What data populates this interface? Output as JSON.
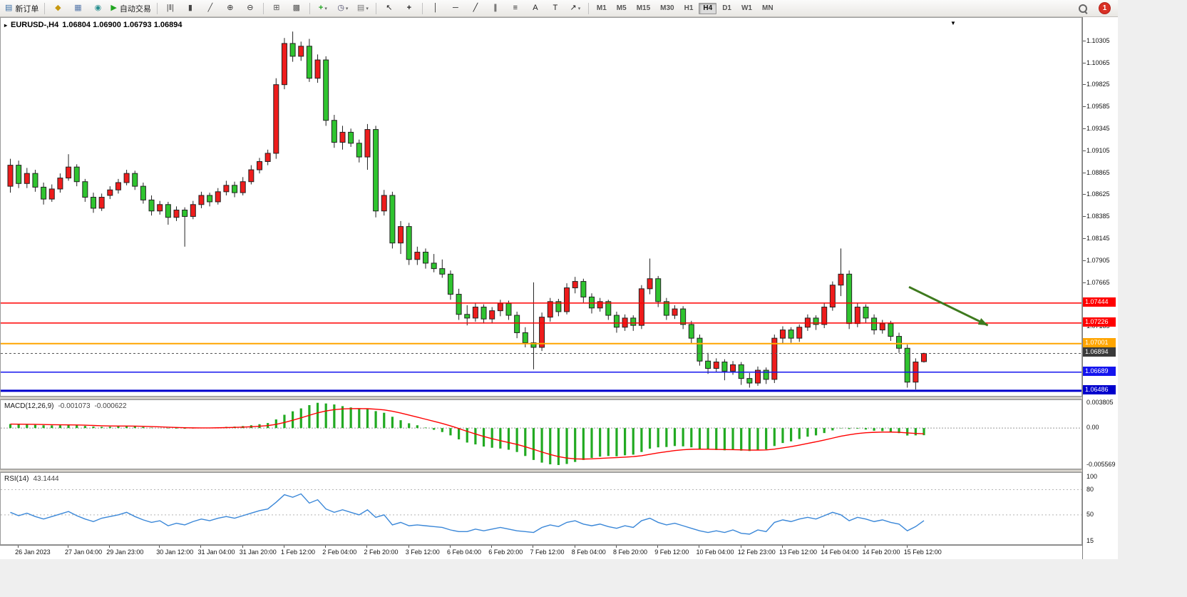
{
  "toolbar": {
    "buttons": [
      {
        "id": "new-order",
        "label": "新订单",
        "icon": "new-order",
        "sep_after": true
      },
      {
        "id": "market-watch",
        "icon": "market-watch"
      },
      {
        "id": "data-window",
        "icon": "data-window"
      },
      {
        "id": "navigator",
        "icon": "navigator"
      },
      {
        "id": "autotrade",
        "label": "自动交易",
        "icon": "autotrade",
        "sep_after": true
      },
      {
        "id": "bar-chart",
        "icon": "bar-chart"
      },
      {
        "id": "candle-chart",
        "icon": "candle-chart"
      },
      {
        "id": "line-chart",
        "icon": "line-chart"
      },
      {
        "id": "zoom-in",
        "icon": "zoom-in"
      },
      {
        "id": "zoom-out",
        "icon": "zoom-out",
        "sep_after": true
      },
      {
        "id": "tile-windows",
        "icon": "tile-windows"
      },
      {
        "id": "auto-arrange",
        "icon": "auto-arrange",
        "sep_after": true
      },
      {
        "id": "new-chart",
        "icon": "new-chart",
        "dropdown": true
      },
      {
        "id": "profiles",
        "icon": "profiles",
        "dropdown": true
      },
      {
        "id": "templates",
        "icon": "templates",
        "dropdown": true,
        "sep_after": true
      },
      {
        "id": "cursor",
        "icon": "cursor"
      },
      {
        "id": "crosshair",
        "icon": "crosshair",
        "sep_after": true
      },
      {
        "id": "vertical-line",
        "icon": "vertical-line"
      },
      {
        "id": "horizontal-line",
        "icon": "horizontal-line"
      },
      {
        "id": "trendline",
        "icon": "trendline"
      },
      {
        "id": "channel",
        "icon": "channel"
      },
      {
        "id": "fibonacci",
        "icon": "fibonacci"
      },
      {
        "id": "text",
        "icon": "text"
      },
      {
        "id": "text-label",
        "icon": "text-label"
      },
      {
        "id": "arrows",
        "icon": "arrows",
        "dropdown": true,
        "sep_after": true
      }
    ],
    "icons": {
      "new-order": "▤",
      "market-watch": "◆",
      "data-window": "▦",
      "navigator": "◉",
      "autotrade": "▶",
      "bar-chart": "|‖|",
      "candle-chart": "▮",
      "line-chart": "╱",
      "zoom-in": "⊕",
      "zoom-out": "⊖",
      "tile-windows": "⊞",
      "auto-arrange": "▩",
      "new-chart": "+",
      "profiles": "◷",
      "templates": "▤",
      "cursor": "↖",
      "crosshair": "+",
      "vertical-line": "│",
      "horizontal-line": "─",
      "trendline": "╱",
      "channel": "∥",
      "fibonacci": "≡",
      "text": "A",
      "text-label": "T",
      "arrows": "↗"
    },
    "icon_colors": {
      "new-order": "#3a6ea5",
      "market-watch": "#c79810",
      "data-window": "#5577aa",
      "navigator": "#2a9090",
      "autotrade": "#1fa51f",
      "new-chart": "#1fa51f",
      "zoom-in": "#333",
      "zoom-out": "#333",
      "bar-chart": "#444",
      "candle-chart": "#444",
      "line-chart": "#444",
      "tile-windows": "#555",
      "auto-arrange": "#555",
      "profiles": "#446",
      "templates": "#777",
      "cursor": "#222",
      "crosshair": "#222",
      "vertical-line": "#222",
      "horizontal-line": "#222",
      "trendline": "#222",
      "channel": "#222",
      "fibonacci": "#222",
      "text": "#222",
      "text-label": "#222",
      "arrows": "#222"
    },
    "timeframes": [
      "M1",
      "M5",
      "M15",
      "M30",
      "H1",
      "H4",
      "D1",
      "W1",
      "MN"
    ],
    "active_timeframe": "H4",
    "notification_count": "1"
  },
  "chart": {
    "symbol_period": "EURUSD-,H4",
    "ohlc_text": "1.06804 1.06900 1.06793 1.06894",
    "open": "1.06804",
    "high": "1.06900",
    "low": "1.06793",
    "close": "1.06894",
    "dropdown_glyph": "▼",
    "menu_glyph": "▸"
  },
  "indicators": {
    "macd": {
      "name": "MACD(12,26,9)",
      "main_value": "-0.001073",
      "signal_value": "-0.000622",
      "axis_labels": [
        {
          "t": "0.003805",
          "v": 0.003805
        },
        {
          "t": "0.00",
          "v": 0
        },
        {
          "t": "-0.005569",
          "v": -0.005569
        }
      ]
    },
    "rsi": {
      "name": "RSI(14)",
      "value": "43.1444",
      "axis_labels": [
        {
          "t": "100",
          "v": 100
        },
        {
          "t": "80",
          "v": 80
        },
        {
          "t": "50",
          "v": 50
        },
        {
          "t": "15",
          "v": 15
        }
      ],
      "level_lines": [
        80,
        50
      ]
    }
  },
  "price_axis": {
    "tick_labels": [
      "1.10305",
      "1.10065",
      "1.09825",
      "1.09585",
      "1.09345",
      "1.09105",
      "1.08865",
      "1.08625",
      "1.08385",
      "1.08145",
      "1.07905",
      "1.07665",
      "1.07425",
      "1.07185",
      "1.06945",
      "1.06705",
      "1.06465"
    ]
  },
  "levels": [
    {
      "price": 1.07444,
      "label": "1.07444",
      "color": "#ff0000",
      "width": 1.5
    },
    {
      "price": 1.07226,
      "label": "1.07226",
      "color": "#ff0000",
      "width": 1.5
    },
    {
      "price": 1.07001,
      "label": "1.07001",
      "color": "#ffa500",
      "width": 2
    },
    {
      "price": 1.06689,
      "label": "1.06689",
      "color": "#1414ee",
      "width": 1.5
    },
    {
      "price": 1.06486,
      "label": "1.06486",
      "color": "#0000cd",
      "width": 3
    }
  ],
  "current_price": {
    "price": 1.06894,
    "label": "1.06894",
    "badge_bg": "#3a3a3a",
    "line_color": "#555"
  },
  "annotation_arrow": {
    "from_index": 108.5,
    "from_price": 1.0762,
    "to_index": 118,
    "to_price": 1.072,
    "color": "#3e7a1e"
  },
  "time_axis": {
    "labels": [
      {
        "t": "26 Jan 2023",
        "i": 1
      },
      {
        "t": "27 Jan 04:00",
        "i": 7
      },
      {
        "t": "29 Jan 23:00",
        "i": 12
      },
      {
        "t": "30 Jan 12:00",
        "i": 18
      },
      {
        "t": "31 Jan 04:00",
        "i": 23
      },
      {
        "t": "31 Jan 20:00",
        "i": 28
      },
      {
        "t": "1 Feb 12:00",
        "i": 33
      },
      {
        "t": "2 Feb 04:00",
        "i": 38
      },
      {
        "t": "2 Feb 20:00",
        "i": 43
      },
      {
        "t": "3 Feb 12:00",
        "i": 48
      },
      {
        "t": "6 Feb 04:00",
        "i": 53
      },
      {
        "t": "6 Feb 20:00",
        "i": 58
      },
      {
        "t": "7 Feb 12:00",
        "i": 63
      },
      {
        "t": "8 Feb 04:00",
        "i": 68
      },
      {
        "t": "8 Feb 20:00",
        "i": 73
      },
      {
        "t": "9 Feb 12:00",
        "i": 78
      },
      {
        "t": "10 Feb 04:00",
        "i": 83
      },
      {
        "t": "12 Feb 23:00",
        "i": 88
      },
      {
        "t": "13 Feb 12:00",
        "i": 93
      },
      {
        "t": "14 Feb 04:00",
        "i": 98
      },
      {
        "t": "14 Feb 20:00",
        "i": 103
      },
      {
        "t": "15 Feb 12:00",
        "i": 108
      }
    ]
  },
  "chart_data": {
    "type": "candlestick",
    "symbol": "EURUSD",
    "timeframe": "H4",
    "price_range": [
      1.0643,
      1.1056
    ],
    "up_color": "#ee1c1c",
    "down_color": "#2fc42f",
    "candles": [
      [
        1.0872,
        1.0902,
        1.0865,
        1.0895
      ],
      [
        1.0895,
        1.09,
        1.087,
        1.0875
      ],
      [
        1.0875,
        1.0892,
        1.087,
        1.0886
      ],
      [
        1.0886,
        1.089,
        1.0866,
        1.0871
      ],
      [
        1.0871,
        1.0876,
        1.0852,
        1.0858
      ],
      [
        1.0858,
        1.0874,
        1.0855,
        1.0869
      ],
      [
        1.0869,
        1.0886,
        1.0865,
        1.0881
      ],
      [
        1.0881,
        1.0907,
        1.0878,
        1.0893
      ],
      [
        1.0893,
        1.0896,
        1.0872,
        1.0877
      ],
      [
        1.0877,
        1.088,
        1.0855,
        1.086
      ],
      [
        1.086,
        1.0865,
        1.0843,
        1.0848
      ],
      [
        1.0848,
        1.0864,
        1.0845,
        1.086
      ],
      [
        1.0862,
        1.0872,
        1.0858,
        1.0868
      ],
      [
        1.0868,
        1.088,
        1.0864,
        1.0876
      ],
      [
        1.0876,
        1.089,
        1.0873,
        1.0886
      ],
      [
        1.0886,
        1.0889,
        1.0868,
        1.0872
      ],
      [
        1.0872,
        1.0876,
        1.0853,
        1.0857
      ],
      [
        1.0857,
        1.0862,
        1.084,
        1.0845
      ],
      [
        1.0845,
        1.0856,
        1.0841,
        1.0852
      ],
      [
        1.0852,
        1.0855,
        1.083,
        1.0838
      ],
      [
        1.0838,
        1.085,
        1.0834,
        1.0846
      ],
      [
        1.0846,
        1.0849,
        1.0806,
        1.0839
      ],
      [
        1.0839,
        1.0856,
        1.0836,
        1.0852
      ],
      [
        1.0852,
        1.0866,
        1.0848,
        1.0862
      ],
      [
        1.0862,
        1.0865,
        1.085,
        1.0855
      ],
      [
        1.0855,
        1.087,
        1.0852,
        1.0866
      ],
      [
        1.0866,
        1.0878,
        1.0862,
        1.0873
      ],
      [
        1.0873,
        1.0877,
        1.086,
        1.0865
      ],
      [
        1.0865,
        1.0882,
        1.0862,
        1.0877
      ],
      [
        1.0877,
        1.0895,
        1.0874,
        1.089
      ],
      [
        1.089,
        1.0903,
        1.0886,
        1.0899
      ],
      [
        1.0899,
        1.0912,
        1.0895,
        1.0908
      ],
      [
        1.0908,
        1.099,
        1.0902,
        1.0983
      ],
      [
        1.0983,
        1.1034,
        1.0978,
        1.1028
      ],
      [
        1.1028,
        1.1041,
        1.1008,
        1.1014
      ],
      [
        1.1014,
        1.103,
        1.1009,
        1.1025
      ],
      [
        1.1025,
        1.1033,
        1.0986,
        1.099
      ],
      [
        1.099,
        1.1016,
        1.0985,
        1.101
      ],
      [
        1.101,
        1.1014,
        1.0938,
        1.0944
      ],
      [
        1.0944,
        1.095,
        1.0914,
        1.092
      ],
      [
        1.092,
        1.0938,
        1.0912,
        1.0931
      ],
      [
        1.0931,
        1.0935,
        1.0915,
        1.0919
      ],
      [
        1.0919,
        1.0923,
        1.0898,
        1.0904
      ],
      [
        1.0904,
        1.094,
        1.089,
        1.0934
      ],
      [
        1.0934,
        1.0938,
        1.0838,
        1.0845
      ],
      [
        1.0845,
        1.0868,
        1.084,
        1.0862
      ],
      [
        1.0862,
        1.0866,
        1.0804,
        1.081
      ],
      [
        1.081,
        1.0834,
        1.0798,
        1.0828
      ],
      [
        1.0828,
        1.0832,
        1.0786,
        1.0792
      ],
      [
        1.0792,
        1.0806,
        1.0786,
        1.08
      ],
      [
        1.08,
        1.0804,
        1.0782,
        1.0788
      ],
      [
        1.0788,
        1.0798,
        1.0778,
        1.0782
      ],
      [
        1.0782,
        1.0792,
        1.0772,
        1.0776
      ],
      [
        1.0776,
        1.078,
        1.0748,
        1.0754
      ],
      [
        1.0754,
        1.076,
        1.0726,
        1.0732
      ],
      [
        1.0732,
        1.0742,
        1.072,
        1.0728
      ],
      [
        1.0728,
        1.0744,
        1.0724,
        1.074
      ],
      [
        1.074,
        1.0743,
        1.0722,
        1.0727
      ],
      [
        1.0727,
        1.074,
        1.0722,
        1.0736
      ],
      [
        1.0736,
        1.0748,
        1.073,
        1.0744
      ],
      [
        1.0744,
        1.0747,
        1.0726,
        1.0731
      ],
      [
        1.0731,
        1.0735,
        1.0706,
        1.0712
      ],
      [
        1.0712,
        1.0718,
        1.0696,
        1.0701
      ],
      [
        1.0701,
        1.0767,
        1.0672,
        1.0696
      ],
      [
        1.0696,
        1.0734,
        1.0692,
        1.0729
      ],
      [
        1.0729,
        1.075,
        1.0724,
        1.0746
      ],
      [
        1.0746,
        1.0749,
        1.073,
        1.0735
      ],
      [
        1.0735,
        1.0766,
        1.0732,
        1.0761
      ],
      [
        1.0761,
        1.0773,
        1.0755,
        1.0768
      ],
      [
        1.0768,
        1.0771,
        1.0745,
        1.0751
      ],
      [
        1.0751,
        1.0755,
        1.0733,
        1.0739
      ],
      [
        1.0739,
        1.075,
        1.0735,
        1.0746
      ],
      [
        1.0746,
        1.0748,
        1.0726,
        1.0731
      ],
      [
        1.0731,
        1.0735,
        1.0712,
        1.0718
      ],
      [
        1.0718,
        1.0732,
        1.0714,
        1.0728
      ],
      [
        1.0728,
        1.0731,
        1.0714,
        1.072
      ],
      [
        1.072,
        1.0764,
        1.0716,
        1.076
      ],
      [
        1.076,
        1.0793,
        1.0754,
        1.0771
      ],
      [
        1.0771,
        1.0774,
        1.074,
        1.0746
      ],
      [
        1.0746,
        1.075,
        1.0726,
        1.0731
      ],
      [
        1.0731,
        1.0742,
        1.0727,
        1.0738
      ],
      [
        1.0738,
        1.0741,
        1.0716,
        1.0721
      ],
      [
        1.0721,
        1.0725,
        1.07,
        1.0706
      ],
      [
        1.0706,
        1.071,
        1.0676,
        1.0681
      ],
      [
        1.0681,
        1.069,
        1.0667,
        1.0673
      ],
      [
        1.0673,
        1.0684,
        1.0669,
        1.068
      ],
      [
        1.068,
        1.0683,
        1.066,
        1.067
      ],
      [
        1.067,
        1.0681,
        1.0666,
        1.0677
      ],
      [
        1.0677,
        1.068,
        1.0655,
        1.0662
      ],
      [
        1.0662,
        1.0668,
        1.0652,
        1.0657
      ],
      [
        1.0657,
        1.0675,
        1.0654,
        1.0671
      ],
      [
        1.0671,
        1.0674,
        1.0656,
        1.0661
      ],
      [
        1.0661,
        1.071,
        1.0657,
        1.0706
      ],
      [
        1.0706,
        1.0719,
        1.07,
        1.0715
      ],
      [
        1.0715,
        1.0718,
        1.0701,
        1.0706
      ],
      [
        1.0706,
        1.0721,
        1.0702,
        1.0718
      ],
      [
        1.0718,
        1.0732,
        1.0714,
        1.0728
      ],
      [
        1.0728,
        1.0731,
        1.0715,
        1.0721
      ],
      [
        1.0721,
        1.0744,
        1.0717,
        1.074
      ],
      [
        1.074,
        1.0768,
        1.0736,
        1.0764
      ],
      [
        1.0764,
        1.0804,
        1.0752,
        1.0776
      ],
      [
        1.0776,
        1.078,
        1.0716,
        1.0722
      ],
      [
        1.0722,
        1.0744,
        1.0718,
        1.074
      ],
      [
        1.074,
        1.0743,
        1.0723,
        1.0728
      ],
      [
        1.0728,
        1.0732,
        1.071,
        1.0715
      ],
      [
        1.0715,
        1.0726,
        1.0711,
        1.0722
      ],
      [
        1.0722,
        1.0725,
        1.0703,
        1.0708
      ],
      [
        1.0708,
        1.0712,
        1.069,
        1.0695
      ],
      [
        1.0695,
        1.0699,
        1.0652,
        1.0658
      ],
      [
        1.0658,
        1.0684,
        1.065,
        1.068
      ],
      [
        1.06804,
        1.069,
        1.06793,
        1.06894
      ]
    ],
    "macd_values": [
      0.0006,
      0.00055,
      0.00052,
      0.00048,
      0.00042,
      0.0004,
      0.00042,
      0.00045,
      0.0004,
      0.00032,
      0.00022,
      0.00018,
      0.0002,
      0.00024,
      0.00028,
      0.00024,
      0.00016,
      6e-05,
      2e-05,
      -6e-05,
      -8e-05,
      -0.0001,
      -6e-05,
      0.0,
      4e-05,
      0.0001,
      0.00018,
      0.00022,
      0.0003,
      0.00042,
      0.00058,
      0.00076,
      0.0013,
      0.002,
      0.00252,
      0.00296,
      0.00345,
      0.0038,
      0.0037,
      0.00355,
      0.0033,
      0.0031,
      0.00295,
      0.00285,
      0.00255,
      0.0023,
      0.0017,
      0.00118,
      0.00072,
      0.00042,
      8e-05,
      -0.00026,
      -0.0006,
      -0.0011,
      -0.0017,
      -0.00218,
      -0.00246,
      -0.00278,
      -0.00296,
      -0.00308,
      -0.00326,
      -0.0036,
      -0.0042,
      -0.0048,
      -0.0052,
      -0.00545,
      -0.00556,
      -0.0054,
      -0.0051,
      -0.0048,
      -0.0045,
      -0.0043,
      -0.0042,
      -0.00425,
      -0.0041,
      -0.004,
      -0.0036,
      -0.0031,
      -0.0029,
      -0.00285,
      -0.0027,
      -0.00275,
      -0.0029,
      -0.0031,
      -0.00325,
      -0.0033,
      -0.00335,
      -0.0033,
      -0.0034,
      -0.00345,
      -0.0033,
      -0.0032,
      -0.0027,
      -0.00225,
      -0.002,
      -0.00165,
      -0.0013,
      -0.0011,
      -0.00075,
      -0.00035,
      -5e-05,
      -0.00014,
      -0.0001,
      -0.00022,
      -0.0004,
      -0.00046,
      -0.00058,
      -0.00076,
      -0.00112,
      -0.0011,
      -0.001073
    ],
    "rsi_values": [
      53,
      49,
      52,
      48,
      45,
      48,
      51,
      54,
      49,
      45,
      42,
      46,
      48,
      50,
      53,
      48,
      44,
      41,
      43,
      37,
      40,
      38,
      42,
      45,
      43,
      46,
      48,
      46,
      49,
      52,
      55,
      57,
      65,
      74,
      71,
      75,
      64,
      68,
      57,
      53,
      56,
      53,
      50,
      56,
      47,
      50,
      38,
      41,
      37,
      38,
      37,
      36,
      35,
      32,
      30,
      30,
      33,
      31,
      33,
      35,
      33,
      31,
      30,
      29,
      35,
      38,
      36,
      41,
      43,
      39,
      37,
      39,
      36,
      34,
      37,
      35,
      43,
      46,
      41,
      38,
      40,
      37,
      34,
      31,
      29,
      31,
      29,
      32,
      28,
      27,
      32,
      30,
      41,
      44,
      42,
      45,
      47,
      45,
      49,
      53,
      50,
      43,
      47,
      45,
      42,
      44,
      41,
      39,
      31,
      36,
      43.1444
    ]
  },
  "colors": {
    "macd_hist": "#22aa22",
    "macd_signal": "#ff0000",
    "rsi_line": "#3a87d8",
    "candle_outline": "#222222"
  }
}
